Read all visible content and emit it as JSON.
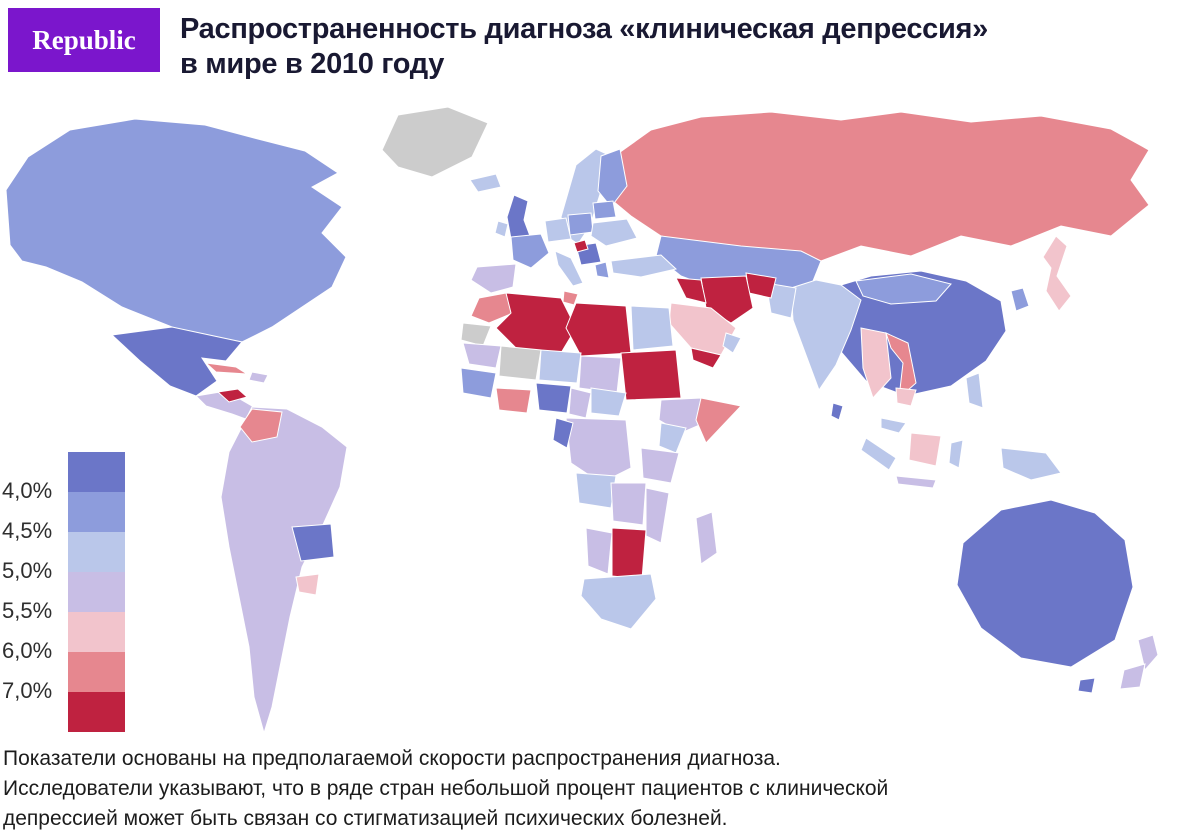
{
  "brand": {
    "logo_text": "Republic",
    "logo_bg": "#7b16cc"
  },
  "header": {
    "title_lines": [
      "Распространенность диагноза «клиническая депрессия»",
      "в мире в 2010 году"
    ]
  },
  "chart_data": {
    "type": "choropleth-map",
    "title": "Распространенность диагноза «клиническая депрессия» в мире в 2010 году",
    "unit": "%",
    "legend": {
      "position": "left",
      "boundary_labels": [
        "4,0%",
        "4,5%",
        "5,0%",
        "5,5%",
        "6,0%",
        "7,0%"
      ],
      "bucket_colors": [
        "#6b76c8",
        "#8d9cdc",
        "#bac7ea",
        "#c8bee5",
        "#f2c4cc",
        "#e6878f",
        "#bf2240"
      ],
      "no_data_color": "#cccccc"
    },
    "regions": {
      "greenland": "nodata",
      "north-america": 1,
      "mexico": 0,
      "central-america": 3,
      "honduras": 6,
      "cuba": 5,
      "hispaniola": 3,
      "south-america": 3,
      "colombia": 5,
      "bolivia": 0,
      "paraguay": 4,
      "iceland": 2,
      "uk": 0,
      "ireland": 2,
      "scandinavia": 2,
      "finland": 1,
      "france": 1,
      "iberia": 3,
      "germany": 2,
      "poland": 1,
      "belarus": 1,
      "ukraine": 2,
      "italy": 2,
      "balkans": 0,
      "croatia": 6,
      "greece": 1,
      "turkey": 2,
      "russia": 5,
      "kazakhstan": 1,
      "central-asia": 3,
      "china": 0,
      "mongolia": 1,
      "korea": 1,
      "japan": 4,
      "india": 2,
      "sri-lanka": 0,
      "pakistan": 2,
      "afghanistan": 6,
      "iran": 6,
      "iraq": 6,
      "saudi-arabia": 4,
      "yemen": 6,
      "oman": 2,
      "morocco": 5,
      "western-sahara": "nodata",
      "algeria": 6,
      "tunisia": 5,
      "libya": 6,
      "egypt": 2,
      "mauritania": 3,
      "mali": "nodata",
      "niger": 2,
      "chad": 3,
      "sudan": 6,
      "ethiopia": 3,
      "somalia": 5,
      "west-africa": 1,
      "ivory-ghana": 5,
      "nigeria": 0,
      "cameroon": 3,
      "car": 2,
      "drc": 3,
      "congo": 0,
      "kenya": 2,
      "tanzania": 3,
      "angola": 2,
      "zambia": 3,
      "mozambique": 3,
      "namibia": 3,
      "zimbabwe-botswana": 6,
      "south-africa": 2,
      "madagascar": 3,
      "myanmar-thailand": 4,
      "vietnam": 5,
      "cambodia": 4,
      "malaysia": 2,
      "sumatra": 2,
      "borneo": 4,
      "sulawesi": 2,
      "java": 3,
      "new-guinea": 2,
      "philippines": 2,
      "australia": 0,
      "new-zealand-north": 3,
      "new-zealand-south": 3
    }
  },
  "footer": {
    "lines": [
      "Показатели основаны на предполагаемой скорости распространения диагноза.",
      "Исследователи указывают, что в ряде стран небольшой процент пациентов с клинической",
      "депрессией может быть связан со стигматизацией психических болезней."
    ]
  }
}
